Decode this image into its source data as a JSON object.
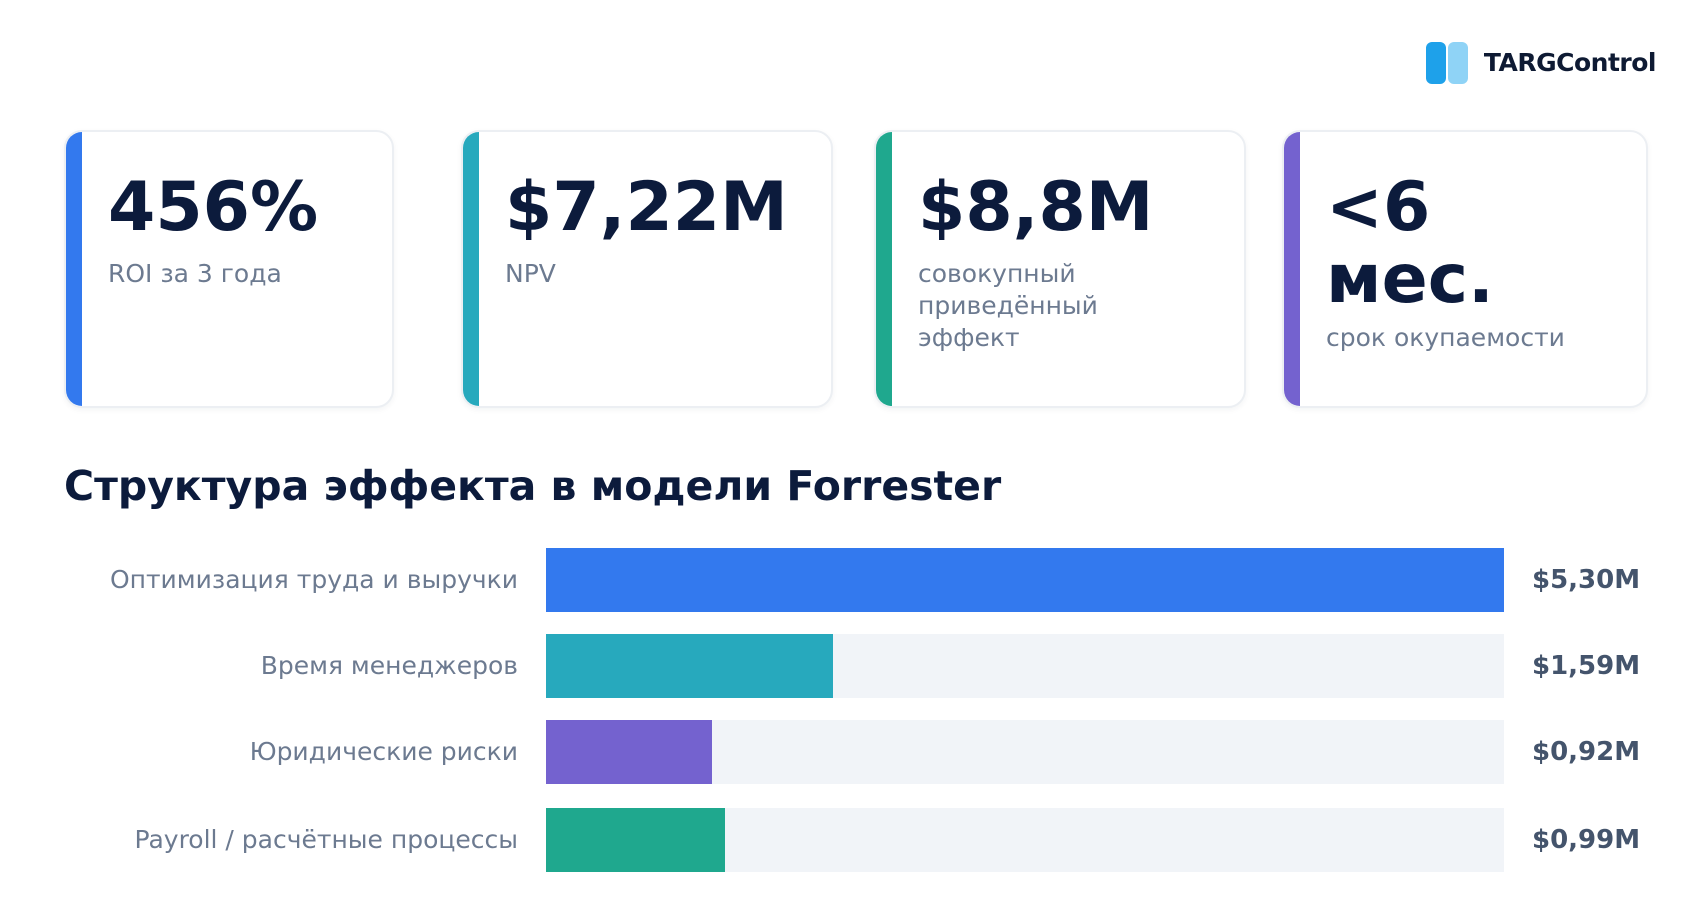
{
  "logo": {
    "text": "TARGControl",
    "colors": [
      "#1ea1ea",
      "#8fd3f6"
    ]
  },
  "kpis": [
    {
      "value": "456%",
      "label": "ROI за 3 года",
      "accent": "#3379ee"
    },
    {
      "value": "$7,22M",
      "label": "NPV",
      "accent": "#27a9bd"
    },
    {
      "value": "$8,8M",
      "label": "совокупный приведённый эффект",
      "accent": "#1fa88e"
    },
    {
      "value": "<6 мес.",
      "label": "срок окупаемости",
      "accent": "#7462cf"
    }
  ],
  "chart_data": {
    "type": "bar",
    "orientation": "horizontal",
    "title": "Структура эффекта в модели Forrester",
    "categories": [
      "Оптимизация труда и выручки",
      "Время менеджеров",
      "Юридические риски",
      "Payroll / расчётные процессы"
    ],
    "values": [
      5.3,
      1.59,
      0.92,
      0.99
    ],
    "value_labels": [
      "$5,30M",
      "$1,59M",
      "$0,92M",
      "$0,99M"
    ],
    "colors": [
      "#3379ee",
      "#27a9bd",
      "#7462cf",
      "#1fa88e"
    ],
    "xlim": [
      0,
      5.3
    ],
    "grid": false,
    "legend": "none"
  }
}
